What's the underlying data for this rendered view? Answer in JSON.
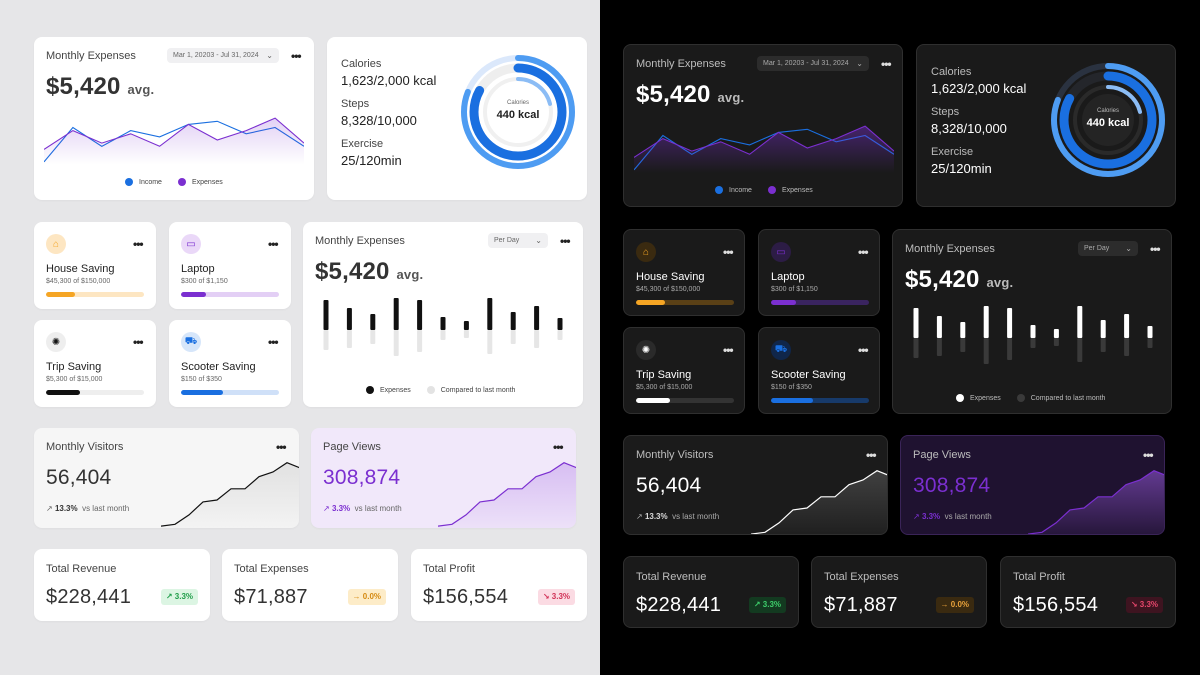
{
  "monthly_expenses": {
    "title": "Monthly Expenses",
    "date_range": "Mar 1, 20203 - Jul 31, 2024",
    "amount": "$5,420",
    "avg_suffix": "avg.",
    "legend_income": "Income",
    "legend_expenses": "Expenses",
    "colors": {
      "income": "#1a6fe0",
      "expenses": "#7b2fd0"
    },
    "chart_data": {
      "type": "line",
      "series": [
        {
          "name": "Income",
          "values": [
            5,
            60,
            30,
            55,
            45,
            65,
            70,
            50,
            60,
            30
          ]
        },
        {
          "name": "Expenses",
          "values": [
            25,
            55,
            35,
            50,
            30,
            65,
            40,
            55,
            75,
            35
          ]
        }
      ]
    }
  },
  "health": {
    "calories_label": "Calories",
    "calories_value": "1,623/2,000 kcal",
    "steps_label": "Steps",
    "steps_value": "8,328/10,000",
    "exercise_label": "Exercise",
    "exercise_value": "25/120min",
    "ring_label": "Calories",
    "ring_value": "440 kcal",
    "ring_progress": {
      "calories": 0.81,
      "steps": 0.83,
      "exercise": 0.21
    }
  },
  "savings": [
    {
      "name": "House Saving",
      "amount": "$45,300 of $150,000",
      "progress": 0.3,
      "color": "#f5a524",
      "track": "#fde6c2",
      "icon": "house-icon"
    },
    {
      "name": "Laptop",
      "amount": "$300 of $1,150",
      "progress": 0.26,
      "color": "#7b2fd0",
      "track": "#e3cff5",
      "icon": "laptop-icon"
    },
    {
      "name": "Trip Saving",
      "amount": "$5,300 of $15,000",
      "progress": 0.35,
      "color": "#111111",
      "track": "#eeeeee",
      "icon": "trip-icon"
    },
    {
      "name": "Scooter Saving",
      "amount": "$150 of $350",
      "progress": 0.43,
      "color": "#1a6fe0",
      "track": "#cfe0f8",
      "icon": "scooter-icon"
    }
  ],
  "daily_expenses": {
    "title": "Monthly Expenses",
    "period": "Per Day",
    "amount": "$5,420",
    "avg_suffix": "avg.",
    "legend_expenses": "Expenses",
    "legend_compared": "Compared to last month",
    "chart_data": {
      "type": "bar",
      "series": [
        {
          "name": "Expenses",
          "values": [
            30,
            22,
            16,
            32,
            30,
            13,
            9,
            32,
            18,
            24,
            12
          ]
        },
        {
          "name": "Compared to last month",
          "values": [
            20,
            18,
            14,
            26,
            22,
            10,
            8,
            24,
            14,
            18,
            10
          ]
        }
      ]
    }
  },
  "visitors": {
    "title": "Monthly Visitors",
    "value": "56,404",
    "change": "13.3%",
    "change_note": "vs last month",
    "chart_data": {
      "type": "area",
      "values": [
        2,
        4,
        14,
        28,
        30,
        42,
        42,
        55,
        60,
        70,
        64
      ]
    }
  },
  "page_views": {
    "title": "Page Views",
    "value": "308,874",
    "change": "3.3%",
    "change_note": "vs last month",
    "chart_data": {
      "type": "area",
      "values": [
        2,
        4,
        14,
        28,
        30,
        42,
        42,
        55,
        60,
        70,
        64
      ]
    }
  },
  "kpis": [
    {
      "label": "Total Revenue",
      "value": "$228,441",
      "change": "3.3%",
      "trend": "up"
    },
    {
      "label": "Total Expenses",
      "value": "$71,887",
      "change": "0.0%",
      "trend": "flat"
    },
    {
      "label": "Total Profit",
      "value": "$156,554",
      "change": "3.3%",
      "trend": "down"
    }
  ]
}
